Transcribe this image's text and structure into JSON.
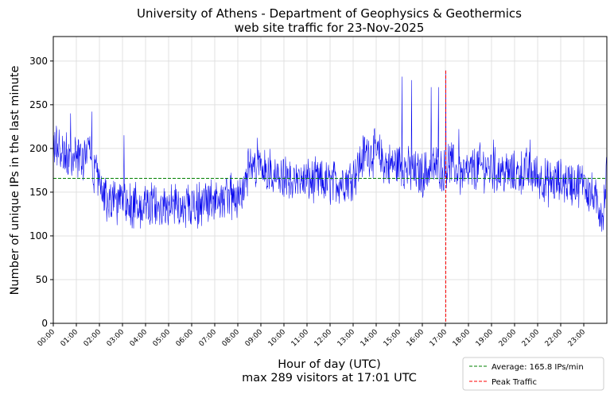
{
  "chart_data": {
    "type": "line",
    "title": "University of Athens - Department of Geophysics & Geothermics",
    "subtitle": "web site traffic for 23-Nov-2025",
    "xlabel": "Hour of day (UTC)",
    "xlabel_sub": "max 289 visitors at 17:01 UTC",
    "ylabel": "Number of unique IPs in the last minute",
    "ylim": [
      0,
      328
    ],
    "xlim_minutes": [
      0,
      1440
    ],
    "yticks": [
      0,
      50,
      100,
      150,
      200,
      250,
      300
    ],
    "xticks": [
      "00:00",
      "01:00",
      "02:00",
      "03:00",
      "04:00",
      "05:00",
      "06:00",
      "07:00",
      "08:00",
      "09:00",
      "10:00",
      "11:00",
      "12:00",
      "13:00",
      "14:00",
      "15:00",
      "16:00",
      "17:00",
      "18:00",
      "19:00",
      "20:00",
      "21:00",
      "22:00",
      "23:00"
    ],
    "grid": true,
    "legend_placement": "below-right",
    "series_profile": {
      "description_units": "minute of day, unique IPs",
      "points": [
        [
          0,
          205
        ],
        [
          30,
          190
        ],
        [
          60,
          185
        ],
        [
          90,
          195
        ],
        [
          110,
          170
        ],
        [
          130,
          145
        ],
        [
          180,
          140
        ],
        [
          240,
          133
        ],
        [
          300,
          135
        ],
        [
          360,
          133
        ],
        [
          420,
          140
        ],
        [
          480,
          145
        ],
        [
          510,
          175
        ],
        [
          540,
          185
        ],
        [
          570,
          168
        ],
        [
          600,
          163
        ],
        [
          660,
          163
        ],
        [
          720,
          160
        ],
        [
          770,
          165
        ],
        [
          790,
          175
        ],
        [
          810,
          195
        ],
        [
          840,
          195
        ],
        [
          870,
          180
        ],
        [
          900,
          183
        ],
        [
          930,
          173
        ],
        [
          960,
          170
        ],
        [
          990,
          180
        ],
        [
          1020,
          172
        ],
        [
          1030,
          185
        ],
        [
          1060,
          170
        ],
        [
          1080,
          172
        ],
        [
          1110,
          180
        ],
        [
          1140,
          175
        ],
        [
          1170,
          173
        ],
        [
          1200,
          170
        ],
        [
          1230,
          175
        ],
        [
          1260,
          168
        ],
        [
          1290,
          160
        ],
        [
          1320,
          163
        ],
        [
          1350,
          160
        ],
        [
          1380,
          160
        ],
        [
          1410,
          140
        ],
        [
          1430,
          125
        ],
        [
          1440,
          170
        ]
      ],
      "spikes": [
        [
          45,
          240
        ],
        [
          100,
          242
        ],
        [
          184,
          215
        ],
        [
          531,
          212
        ],
        [
          907,
          282
        ],
        [
          932,
          278
        ],
        [
          983,
          270
        ],
        [
          1002,
          270
        ],
        [
          1021,
          289
        ],
        [
          1055,
          222
        ],
        [
          1145,
          210
        ],
        [
          1240,
          210
        ],
        [
          1380,
          170
        ],
        [
          1439,
          190
        ]
      ]
    },
    "series": [
      {
        "kind": "traffic",
        "color": "#0000ee"
      }
    ],
    "reference_lines": [
      {
        "name": "Average: 165.8 IPs/min",
        "orientation": "horizontal",
        "value": 165.8,
        "color": "#008000",
        "style": "dashed"
      },
      {
        "name": "Peak Traffic",
        "orientation": "vertical",
        "value_time": "17:01",
        "value_minute": 1021,
        "ymax": 289,
        "color": "#ff0000",
        "style": "dashed"
      }
    ]
  }
}
